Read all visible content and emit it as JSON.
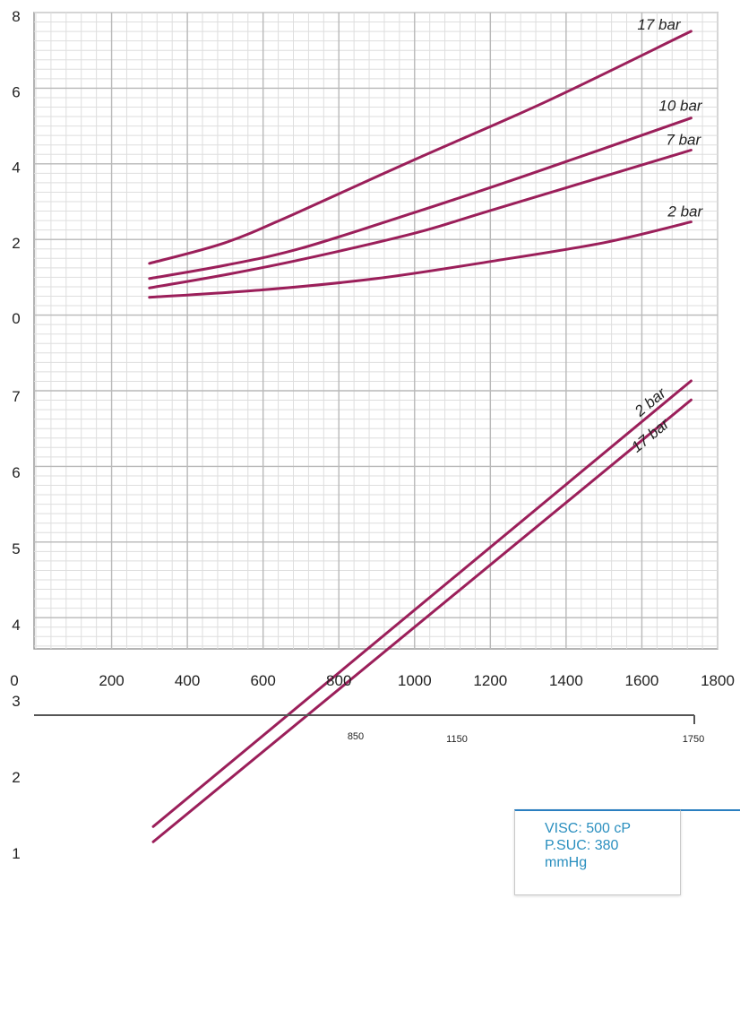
{
  "chart_data": {
    "type": "line",
    "title": "",
    "xlabel": "",
    "ylabel": "",
    "xlim": [
      0,
      1800
    ],
    "x_ticks": [
      0,
      200,
      400,
      600,
      800,
      1000,
      1200,
      1400,
      1600,
      1800
    ],
    "grid": true,
    "upper_panel": {
      "ylim": [
        0,
        8
      ],
      "y_ticks": [
        0,
        2,
        4,
        6,
        8
      ],
      "series": [
        {
          "name": "17 bar",
          "x": [
            300,
            500,
            680,
            1000,
            1350,
            1730
          ],
          "y": [
            1.45,
            2.0,
            2.75,
            4.2,
            5.75,
            7.6
          ]
        },
        {
          "name": "10 bar",
          "x": [
            300,
            500,
            700,
            1000,
            1300,
            1730
          ],
          "y": [
            1.05,
            1.4,
            1.85,
            2.8,
            3.8,
            5.3
          ]
        },
        {
          "name": "7 bar",
          "x": [
            300,
            500,
            700,
            1000,
            1200,
            1730
          ],
          "y": [
            0.8,
            1.15,
            1.55,
            2.25,
            2.85,
            4.45
          ]
        },
        {
          "name": "2 bar",
          "x": [
            300,
            600,
            900,
            1200,
            1500,
            1730
          ],
          "y": [
            0.55,
            0.75,
            1.05,
            1.5,
            2.0,
            2.55
          ]
        }
      ]
    },
    "lower_panel": {
      "ylim": [
        0,
        8
      ],
      "y_ticks": [
        1,
        2,
        3,
        4,
        5,
        6,
        7
      ],
      "series": [
        {
          "name": "2 bar",
          "x": [
            310,
            1730
          ],
          "y": [
            1.35,
            7.2
          ]
        },
        {
          "name": "17 bar",
          "x": [
            310,
            1730
          ],
          "y": [
            1.15,
            6.95
          ]
        }
      ]
    },
    "secondary_axis": {
      "ticks": [
        850,
        1150,
        1750
      ]
    }
  },
  "legend": {
    "line1": "VISC: 500 cP",
    "line2": "P.SUC: 380",
    "line3": "mmHg"
  },
  "colors": {
    "curve": "#9b1f5a",
    "grid_major": "#b9b9b9",
    "grid_minor": "#dedede",
    "legend_text": "#2a8fbf",
    "legend_accent": "#2a7fc0"
  }
}
